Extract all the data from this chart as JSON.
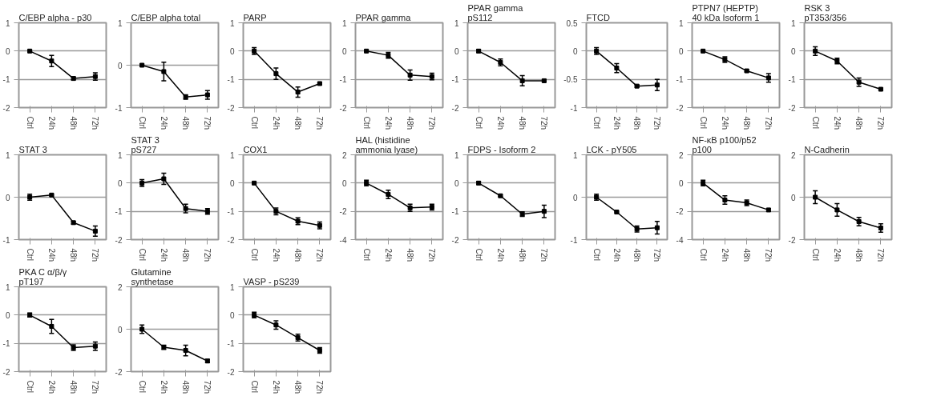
{
  "chart_data": [
    {
      "type": "line",
      "title": "C/EBP alpha  - p30",
      "categories": [
        "Ctrl",
        "24h",
        "48h",
        "72h"
      ],
      "values": [
        0,
        -0.35,
        -0.97,
        -0.9
      ],
      "errors": [
        0.03,
        0.2,
        0.05,
        0.13
      ],
      "color": "#000000",
      "ylim": [
        -2,
        1
      ],
      "yticks": [
        -2,
        -1,
        0,
        1
      ],
      "grid": "y",
      "marker": "square",
      "line_style": "solid"
    },
    {
      "type": "line",
      "title": "C/EBP alpha total",
      "categories": [
        "Ctrl",
        "24h",
        "48h",
        "72h"
      ],
      "values": [
        0,
        -0.15,
        -0.75,
        -0.7
      ],
      "errors": [
        0.02,
        0.22,
        0.05,
        0.1
      ],
      "color": "#000000",
      "ylim": [
        -1,
        1
      ],
      "yticks": [
        -1,
        0,
        1
      ],
      "grid": "y",
      "marker": "square",
      "line_style": "solid"
    },
    {
      "type": "line",
      "title": "PARP",
      "categories": [
        "Ctrl",
        "24h",
        "48h",
        "72h"
      ],
      "values": [
        0,
        -0.8,
        -1.45,
        -1.15
      ],
      "errors": [
        0.12,
        0.2,
        0.18,
        0.03
      ],
      "color": "#000000",
      "ylim": [
        -2,
        1
      ],
      "yticks": [
        -2,
        -1,
        0,
        1
      ],
      "grid": "y",
      "marker": "square",
      "line_style": "solid"
    },
    {
      "type": "line",
      "title": "PPAR gamma",
      "categories": [
        "Ctrl",
        "24h",
        "48h",
        "72h"
      ],
      "values": [
        0,
        -0.15,
        -0.85,
        -0.9
      ],
      "errors": [
        0.03,
        0.1,
        0.18,
        0.12
      ],
      "color": "#000000",
      "ylim": [
        -2,
        1
      ],
      "yticks": [
        -2,
        -1,
        0,
        1
      ],
      "grid": "y",
      "marker": "square",
      "line_style": "solid"
    },
    {
      "type": "line",
      "title": "PPAR gamma\npS112",
      "categories": [
        "Ctrl",
        "24h",
        "48h",
        "72h"
      ],
      "values": [
        0,
        -0.4,
        -1.05,
        -1.05
      ],
      "errors": [
        0.05,
        0.12,
        0.18,
        0.03
      ],
      "color": "#000000",
      "ylim": [
        -2,
        1
      ],
      "yticks": [
        -2,
        -1,
        0,
        1
      ],
      "grid": "y",
      "marker": "square",
      "line_style": "solid"
    },
    {
      "type": "line",
      "title": "FTCD",
      "categories": [
        "Ctrl",
        "24h",
        "48h",
        "72h"
      ],
      "values": [
        0,
        -0.3,
        -0.62,
        -0.6
      ],
      "errors": [
        0.06,
        0.08,
        0.02,
        0.1
      ],
      "color": "#000000",
      "ylim": [
        -1,
        0.5
      ],
      "yticks": [
        -1,
        -0.5,
        0,
        0.5
      ],
      "grid": "y",
      "marker": "square",
      "line_style": "solid"
    },
    {
      "type": "line",
      "title": "PTPN7 (HEPTP)\n40 kDa Isoform 1",
      "categories": [
        "Ctrl",
        "24h",
        "48h",
        "72h"
      ],
      "values": [
        0,
        -0.3,
        -0.7,
        -0.95
      ],
      "errors": [
        0.03,
        0.1,
        0.03,
        0.15
      ],
      "color": "#000000",
      "ylim": [
        -2,
        1
      ],
      "yticks": [
        -2,
        -1,
        0,
        1
      ],
      "grid": "y",
      "marker": "square",
      "line_style": "solid"
    },
    {
      "type": "line",
      "title": "RSK 3\npT353/356",
      "categories": [
        "Ctrl",
        "24h",
        "48h",
        "72h"
      ],
      "values": [
        0,
        -0.35,
        -1.1,
        -1.35
      ],
      "errors": [
        0.15,
        0.1,
        0.15,
        0.03
      ],
      "color": "#000000",
      "ylim": [
        -2,
        1
      ],
      "yticks": [
        -2,
        -1,
        0,
        1
      ],
      "grid": "y",
      "marker": "square",
      "line_style": "solid"
    },
    {
      "type": "line",
      "title": "STAT 3",
      "categories": [
        "Ctrl",
        "24h",
        "48h",
        "72h"
      ],
      "values": [
        0,
        0.05,
        -0.6,
        -0.8
      ],
      "errors": [
        0.07,
        0.02,
        0.03,
        0.12
      ],
      "color": "#000000",
      "ylim": [
        -1,
        1
      ],
      "yticks": [
        -1,
        0,
        1
      ],
      "grid": "y",
      "marker": "square",
      "line_style": "solid"
    },
    {
      "type": "line",
      "title": "STAT 3\npS727",
      "categories": [
        "Ctrl",
        "24h",
        "48h",
        "72h"
      ],
      "values": [
        0,
        0.15,
        -0.9,
        -1.0
      ],
      "errors": [
        0.12,
        0.2,
        0.15,
        0.1
      ],
      "color": "#000000",
      "ylim": [
        -2,
        1
      ],
      "yticks": [
        -2,
        -1,
        0,
        1
      ],
      "grid": "y",
      "marker": "square",
      "line_style": "solid"
    },
    {
      "type": "line",
      "title": "COX1",
      "categories": [
        "Ctrl",
        "24h",
        "48h",
        "72h"
      ],
      "values": [
        0,
        -1.0,
        -1.35,
        -1.5
      ],
      "errors": [
        0.03,
        0.12,
        0.12,
        0.12
      ],
      "color": "#000000",
      "ylim": [
        -2,
        1
      ],
      "yticks": [
        -2,
        -1,
        0,
        1
      ],
      "grid": "y",
      "marker": "square",
      "line_style": "solid"
    },
    {
      "type": "line",
      "title": "HAL (histidine\nammonia lyase)",
      "categories": [
        "Ctrl",
        "24h",
        "48h",
        "72h"
      ],
      "values": [
        0,
        -0.8,
        -1.75,
        -1.7
      ],
      "errors": [
        0.2,
        0.3,
        0.25,
        0.2
      ],
      "color": "#000000",
      "ylim": [
        -4,
        2
      ],
      "yticks": [
        -4,
        -2,
        0,
        2
      ],
      "grid": "y",
      "marker": "square",
      "line_style": "solid"
    },
    {
      "type": "line",
      "title": "FDPS - Isoform 2",
      "categories": [
        "Ctrl",
        "24h",
        "48h",
        "72h"
      ],
      "values": [
        0,
        -0.45,
        -1.1,
        -1.0
      ],
      "errors": [
        0.05,
        0.03,
        0.08,
        0.22
      ],
      "color": "#000000",
      "ylim": [
        -2,
        1
      ],
      "yticks": [
        -2,
        -1,
        0,
        1
      ],
      "grid": "y",
      "marker": "square",
      "line_style": "solid"
    },
    {
      "type": "line",
      "title": "LCK - pY505",
      "categories": [
        "Ctrl",
        "24h",
        "48h",
        "72h"
      ],
      "values": [
        0,
        -0.35,
        -0.75,
        -0.72
      ],
      "errors": [
        0.07,
        0.02,
        0.07,
        0.15
      ],
      "color": "#000000",
      "ylim": [
        -1,
        1
      ],
      "yticks": [
        -1,
        0,
        1
      ],
      "grid": "y",
      "marker": "square",
      "line_style": "solid"
    },
    {
      "type": "line",
      "title": "NF-κB p100/p52\np100",
      "categories": [
        "Ctrl",
        "24h",
        "48h",
        "72h"
      ],
      "values": [
        0,
        -1.2,
        -1.4,
        -1.9
      ],
      "errors": [
        0.2,
        0.3,
        0.2,
        0.1
      ],
      "color": "#000000",
      "ylim": [
        -4,
        2
      ],
      "yticks": [
        -4,
        -2,
        0,
        2
      ],
      "grid": "y",
      "marker": "square",
      "line_style": "solid"
    },
    {
      "type": "line",
      "title": "N-Cadherin",
      "categories": [
        "Ctrl",
        "24h",
        "48h",
        "72h"
      ],
      "values": [
        0,
        -0.6,
        -1.15,
        -1.45
      ],
      "errors": [
        0.3,
        0.3,
        0.2,
        0.2
      ],
      "color": "#000000",
      "ylim": [
        -2,
        2
      ],
      "yticks": [
        -2,
        0,
        2
      ],
      "grid": "y",
      "marker": "square",
      "line_style": "solid"
    },
    {
      "type": "line",
      "title": "PKA C α/β/γ\npT197",
      "categories": [
        "Ctrl",
        "24h",
        "48h",
        "72h"
      ],
      "values": [
        0,
        -0.4,
        -1.15,
        -1.1
      ],
      "errors": [
        0.07,
        0.25,
        0.1,
        0.15
      ],
      "color": "#000000",
      "ylim": [
        -2,
        1
      ],
      "yticks": [
        -2,
        -1,
        0,
        1
      ],
      "grid": "y",
      "marker": "square",
      "line_style": "solid"
    },
    {
      "type": "line",
      "title": "Glutamine\nsynthetase",
      "categories": [
        "Ctrl",
        "24h",
        "48h",
        "72h"
      ],
      "values": [
        0,
        -0.85,
        -1.0,
        -1.5
      ],
      "errors": [
        0.2,
        0.1,
        0.25,
        0.08
      ],
      "color": "#000000",
      "ylim": [
        -2,
        2
      ],
      "yticks": [
        -2,
        0,
        2
      ],
      "grid": "y",
      "marker": "square",
      "line_style": "solid"
    },
    {
      "type": "line",
      "title": "VASP - pS239",
      "categories": [
        "Ctrl",
        "24h",
        "48h",
        "72h"
      ],
      "values": [
        0,
        -0.35,
        -0.8,
        -1.25
      ],
      "errors": [
        0.1,
        0.15,
        0.12,
        0.1
      ],
      "color": "#000000",
      "ylim": [
        -2,
        1
      ],
      "yticks": [
        -2,
        -1,
        0,
        1
      ],
      "grid": "y",
      "marker": "square",
      "line_style": "solid"
    }
  ]
}
